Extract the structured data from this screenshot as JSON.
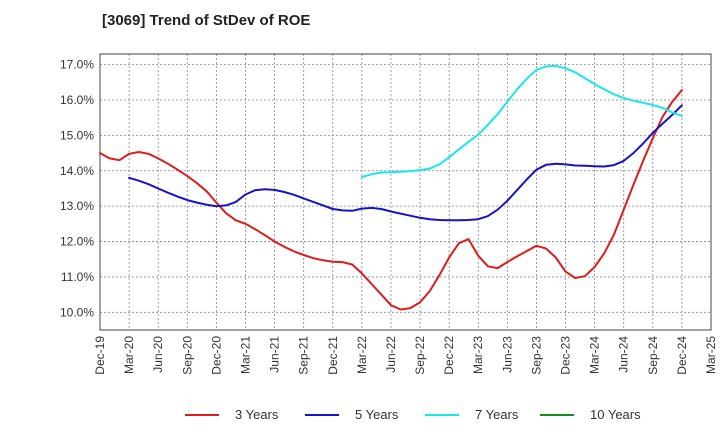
{
  "chart_data": {
    "type": "line",
    "title": "[3069]  Trend of StDev of ROE",
    "xlabel": "",
    "ylabel": "",
    "x_range": [
      "2019-12",
      "2025-03"
    ],
    "ylim": [
      9.5,
      17.3
    ],
    "y_ticks": [
      10.0,
      11.0,
      12.0,
      13.0,
      14.0,
      15.0,
      16.0,
      17.0
    ],
    "y_tick_labels": [
      "10.0%",
      "11.0%",
      "12.0%",
      "13.0%",
      "14.0%",
      "15.0%",
      "16.0%",
      "17.0%"
    ],
    "x_ticks": [
      "2019-12",
      "2020-03",
      "2020-06",
      "2020-09",
      "2020-12",
      "2021-03",
      "2021-06",
      "2021-09",
      "2021-12",
      "2022-03",
      "2022-06",
      "2022-09",
      "2022-12",
      "2023-03",
      "2023-06",
      "2023-09",
      "2023-12",
      "2024-03",
      "2024-06",
      "2024-09",
      "2024-12",
      "2025-03"
    ],
    "x_tick_labels": [
      "Dec-19",
      "Mar-20",
      "Jun-20",
      "Sep-20",
      "Dec-20",
      "Mar-21",
      "Jun-21",
      "Sep-21",
      "Dec-21",
      "Mar-22",
      "Jun-22",
      "Sep-22",
      "Dec-22",
      "Mar-23",
      "Jun-23",
      "Sep-23",
      "Dec-23",
      "Mar-24",
      "Jun-24",
      "Sep-24",
      "Dec-24",
      "Mar-25"
    ],
    "grid": true,
    "legend_position": "bottom",
    "series": [
      {
        "name": "3 Years",
        "color": "#dd1c1c",
        "points": [
          [
            "2019-12",
            14.5
          ],
          [
            "2020-01",
            14.35
          ],
          [
            "2020-02",
            14.3
          ],
          [
            "2020-03",
            14.48
          ],
          [
            "2020-04",
            14.53
          ],
          [
            "2020-05",
            14.48
          ],
          [
            "2020-06",
            14.35
          ],
          [
            "2020-07",
            14.2
          ],
          [
            "2020-08",
            14.03
          ],
          [
            "2020-09",
            13.85
          ],
          [
            "2020-10",
            13.65
          ],
          [
            "2020-11",
            13.42
          ],
          [
            "2020-12",
            13.1
          ],
          [
            "2021-01",
            12.8
          ],
          [
            "2021-02",
            12.6
          ],
          [
            "2021-03",
            12.5
          ],
          [
            "2021-04",
            12.35
          ],
          [
            "2021-05",
            12.18
          ],
          [
            "2021-06",
            12.0
          ],
          [
            "2021-07",
            11.85
          ],
          [
            "2021-08",
            11.72
          ],
          [
            "2021-09",
            11.62
          ],
          [
            "2021-10",
            11.53
          ],
          [
            "2021-11",
            11.47
          ],
          [
            "2021-12",
            11.43
          ],
          [
            "2022-01",
            11.42
          ],
          [
            "2022-02",
            11.35
          ],
          [
            "2022-03",
            11.1
          ],
          [
            "2022-04",
            10.8
          ],
          [
            "2022-05",
            10.5
          ],
          [
            "2022-06",
            10.2
          ],
          [
            "2022-07",
            10.08
          ],
          [
            "2022-08",
            10.12
          ],
          [
            "2022-09",
            10.28
          ],
          [
            "2022-10",
            10.6
          ],
          [
            "2022-11",
            11.05
          ],
          [
            "2022-12",
            11.55
          ],
          [
            "2023-01",
            11.95
          ],
          [
            "2023-02",
            12.07
          ],
          [
            "2023-03",
            11.6
          ],
          [
            "2023-04",
            11.3
          ],
          [
            "2023-05",
            11.25
          ],
          [
            "2023-06",
            11.42
          ],
          [
            "2023-07",
            11.58
          ],
          [
            "2023-08",
            11.73
          ],
          [
            "2023-09",
            11.88
          ],
          [
            "2023-10",
            11.8
          ],
          [
            "2023-11",
            11.55
          ],
          [
            "2023-12",
            11.15
          ],
          [
            "2024-01",
            10.97
          ],
          [
            "2024-02",
            11.02
          ],
          [
            "2024-03",
            11.28
          ],
          [
            "2024-04",
            11.67
          ],
          [
            "2024-05",
            12.2
          ],
          [
            "2024-06",
            12.9
          ],
          [
            "2024-07",
            13.6
          ],
          [
            "2024-08",
            14.28
          ],
          [
            "2024-09",
            14.92
          ],
          [
            "2024-10",
            15.52
          ],
          [
            "2024-11",
            15.95
          ],
          [
            "2024-12",
            16.28
          ]
        ]
      },
      {
        "name": "5 Years",
        "color": "#1414c8",
        "points": [
          [
            "2020-03",
            13.8
          ],
          [
            "2020-04",
            13.72
          ],
          [
            "2020-05",
            13.62
          ],
          [
            "2020-06",
            13.5
          ],
          [
            "2020-07",
            13.38
          ],
          [
            "2020-08",
            13.27
          ],
          [
            "2020-09",
            13.17
          ],
          [
            "2020-10",
            13.1
          ],
          [
            "2020-11",
            13.04
          ],
          [
            "2020-12",
            13.0
          ],
          [
            "2021-01",
            13.02
          ],
          [
            "2021-02",
            13.12
          ],
          [
            "2021-03",
            13.33
          ],
          [
            "2021-04",
            13.45
          ],
          [
            "2021-05",
            13.48
          ],
          [
            "2021-06",
            13.46
          ],
          [
            "2021-07",
            13.4
          ],
          [
            "2021-08",
            13.32
          ],
          [
            "2021-09",
            13.22
          ],
          [
            "2021-10",
            13.12
          ],
          [
            "2021-11",
            13.02
          ],
          [
            "2021-12",
            12.92
          ],
          [
            "2022-01",
            12.88
          ],
          [
            "2022-02",
            12.87
          ],
          [
            "2022-03",
            12.93
          ],
          [
            "2022-04",
            12.95
          ],
          [
            "2022-05",
            12.92
          ],
          [
            "2022-06",
            12.85
          ],
          [
            "2022-07",
            12.79
          ],
          [
            "2022-08",
            12.73
          ],
          [
            "2022-09",
            12.67
          ],
          [
            "2022-10",
            12.63
          ],
          [
            "2022-11",
            12.61
          ],
          [
            "2022-12",
            12.6
          ],
          [
            "2023-01",
            12.6
          ],
          [
            "2023-02",
            12.61
          ],
          [
            "2023-03",
            12.63
          ],
          [
            "2023-04",
            12.72
          ],
          [
            "2023-05",
            12.9
          ],
          [
            "2023-06",
            13.15
          ],
          [
            "2023-07",
            13.45
          ],
          [
            "2023-08",
            13.75
          ],
          [
            "2023-09",
            14.03
          ],
          [
            "2023-10",
            14.17
          ],
          [
            "2023-11",
            14.2
          ],
          [
            "2023-12",
            14.18
          ],
          [
            "2024-01",
            14.15
          ],
          [
            "2024-02",
            14.14
          ],
          [
            "2024-03",
            14.13
          ],
          [
            "2024-04",
            14.12
          ],
          [
            "2024-05",
            14.16
          ],
          [
            "2024-06",
            14.28
          ],
          [
            "2024-07",
            14.5
          ],
          [
            "2024-08",
            14.77
          ],
          [
            "2024-09",
            15.07
          ],
          [
            "2024-10",
            15.33
          ],
          [
            "2024-11",
            15.58
          ],
          [
            "2024-12",
            15.85
          ]
        ]
      },
      {
        "name": "7 Years",
        "color": "#18e8e8",
        "points": [
          [
            "2022-03",
            13.82
          ],
          [
            "2022-04",
            13.9
          ],
          [
            "2022-05",
            13.95
          ],
          [
            "2022-06",
            13.96
          ],
          [
            "2022-07",
            13.97
          ],
          [
            "2022-08",
            13.99
          ],
          [
            "2022-09",
            14.02
          ],
          [
            "2022-10",
            14.06
          ],
          [
            "2022-11",
            14.18
          ],
          [
            "2022-12",
            14.38
          ],
          [
            "2023-01",
            14.6
          ],
          [
            "2023-02",
            14.82
          ],
          [
            "2023-03",
            15.02
          ],
          [
            "2023-04",
            15.3
          ],
          [
            "2023-05",
            15.6
          ],
          [
            "2023-06",
            15.95
          ],
          [
            "2023-07",
            16.3
          ],
          [
            "2023-08",
            16.6
          ],
          [
            "2023-09",
            16.85
          ],
          [
            "2023-10",
            16.95
          ],
          [
            "2023-11",
            16.96
          ],
          [
            "2023-12",
            16.9
          ],
          [
            "2024-01",
            16.78
          ],
          [
            "2024-02",
            16.62
          ],
          [
            "2024-03",
            16.45
          ],
          [
            "2024-04",
            16.3
          ],
          [
            "2024-05",
            16.16
          ],
          [
            "2024-06",
            16.06
          ],
          [
            "2024-07",
            15.98
          ],
          [
            "2024-08",
            15.92
          ],
          [
            "2024-09",
            15.86
          ],
          [
            "2024-10",
            15.78
          ],
          [
            "2024-11",
            15.65
          ],
          [
            "2024-12",
            15.55
          ]
        ]
      },
      {
        "name": "10 Years",
        "color": "#1a8a1a",
        "points": []
      }
    ]
  }
}
